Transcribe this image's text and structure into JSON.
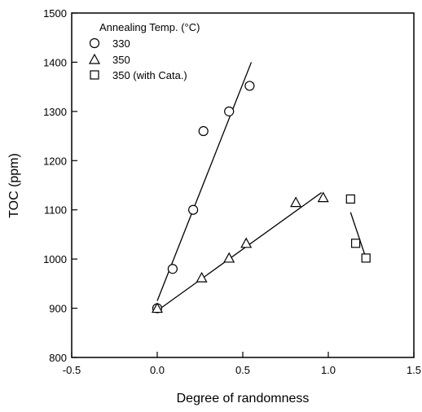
{
  "chart_data": {
    "type": "scatter",
    "xlabel": "Degree of randomness",
    "ylabel": "TOC (ppm)",
    "xlim": [
      -0.5,
      1.5
    ],
    "ylim": [
      800,
      1500
    ],
    "xticks": [
      "-0.5",
      "0.0",
      "0.5",
      "1.0",
      "1.5"
    ],
    "xtick_values": [
      -0.5,
      0.0,
      0.5,
      1.0,
      1.5
    ],
    "yticks": [
      "800",
      "900",
      "1000",
      "1100",
      "1200",
      "1300",
      "1400",
      "1500"
    ],
    "ytick_values": [
      800,
      900,
      1000,
      1100,
      1200,
      1300,
      1400,
      1500
    ],
    "grid": false,
    "legend_title": "Annealing Temp. (°C)",
    "legend_position": "top-left",
    "series": [
      {
        "name": "330",
        "marker": "circle",
        "points": [
          [
            0.0,
            900
          ],
          [
            0.09,
            980
          ],
          [
            0.21,
            1100
          ],
          [
            0.27,
            1260
          ],
          [
            0.42,
            1300
          ],
          [
            0.54,
            1352
          ]
        ],
        "fit": [
          [
            0.0,
            915
          ],
          [
            0.55,
            1400
          ]
        ]
      },
      {
        "name": "350",
        "marker": "triangle",
        "points": [
          [
            0.0,
            900
          ],
          [
            0.26,
            962
          ],
          [
            0.42,
            1002
          ],
          [
            0.52,
            1032
          ],
          [
            0.81,
            1115
          ],
          [
            0.97,
            1125
          ]
        ],
        "fit": [
          [
            0.0,
            895
          ],
          [
            0.96,
            1135
          ]
        ]
      },
      {
        "name": "350 (with Cata.)",
        "marker": "square",
        "points": [
          [
            1.13,
            1122
          ],
          [
            1.16,
            1032
          ],
          [
            1.22,
            1002
          ]
        ],
        "fit": [
          [
            1.13,
            1095
          ],
          [
            1.22,
            1002
          ]
        ]
      }
    ]
  }
}
